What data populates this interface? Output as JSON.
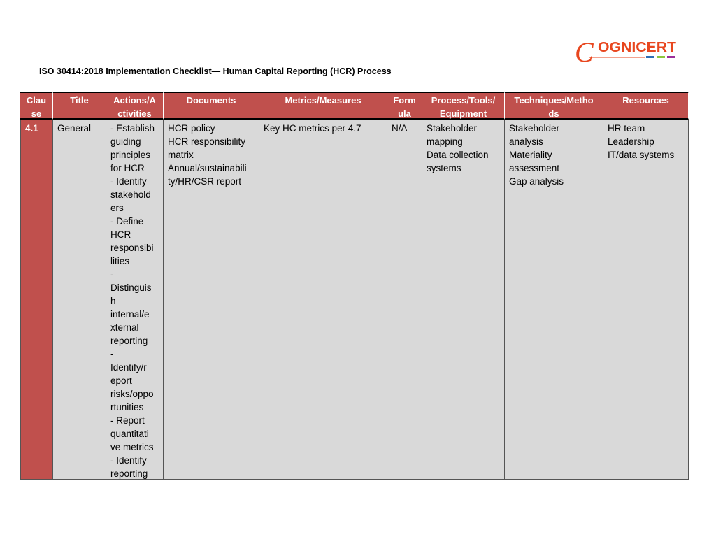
{
  "logo": {
    "text": "OGNICERT",
    "initial": "C",
    "colors": {
      "main": "#e8461e",
      "bars": [
        "#2e6db4",
        "#8cc63f",
        "#9b2f9b"
      ]
    }
  },
  "title": "ISO 30414:2018 Implementation Checklist— Human Capital Reporting (HCR) Process",
  "colors": {
    "header_bg": "#c0504d",
    "cell_bg": "#d9d9d9"
  },
  "table": {
    "headers": [
      [
        "Clau",
        "se"
      ],
      [
        "Title"
      ],
      [
        "Actions/A",
        "ctivities"
      ],
      [
        "Documents"
      ],
      [
        "Metrics/Measures"
      ],
      [
        "Form",
        "ula"
      ],
      [
        "Process/Tools/",
        "Equipment"
      ],
      [
        "Techniques/Metho",
        "ds"
      ],
      [
        "Resources"
      ]
    ],
    "rows": [
      [
        [
          "4.1"
        ],
        [
          "General"
        ],
        [
          "- Establish",
          "guiding",
          "principles",
          "for HCR",
          "- Identify",
          "stakehold",
          "ers",
          "- Define",
          "HCR",
          "responsibi",
          "lities",
          "-",
          "Distinguis",
          "h",
          "internal/e",
          "xternal",
          "reporting",
          "-",
          "Identify/r",
          "eport",
          "risks/oppo",
          "rtunities",
          "- Report",
          "quantitati",
          "ve metrics",
          "- Identify",
          "reporting"
        ],
        [
          "HCR policy",
          "HCR responsibility",
          "matrix",
          "Annual/sustainabili",
          "ty/HR/CSR report"
        ],
        [
          "Key HC metrics per 4.7"
        ],
        [
          "N/A"
        ],
        [
          "Stakeholder",
          "mapping",
          "Data collection",
          "systems"
        ],
        [
          "Stakeholder",
          "analysis",
          "Materiality",
          "assessment",
          "Gap analysis"
        ],
        [
          "HR team",
          "Leadership",
          "IT/data systems"
        ]
      ]
    ]
  }
}
